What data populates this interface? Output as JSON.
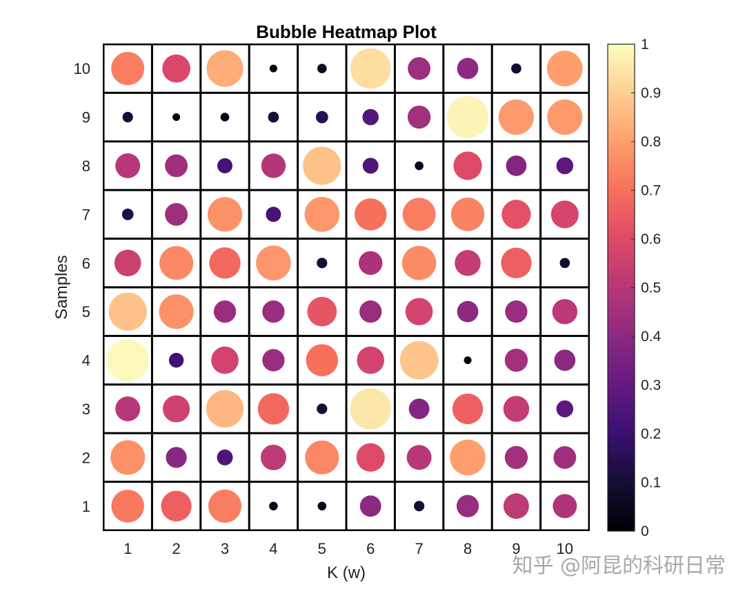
{
  "chart_data": {
    "type": "heatmap",
    "subtype": "bubble",
    "title": "Bubble Heatmap Plot",
    "xlabel": "K (w)",
    "ylabel": "Samples",
    "x": [
      "1",
      "2",
      "3",
      "4",
      "5",
      "6",
      "7",
      "8",
      "9",
      "10"
    ],
    "y": [
      "1",
      "2",
      "3",
      "4",
      "5",
      "6",
      "7",
      "8",
      "9",
      "10"
    ],
    "rows": [
      [
        0.72,
        0.66,
        0.73,
        0.05,
        0.05,
        0.4,
        0.1,
        0.43,
        0.52,
        0.48
      ],
      [
        0.77,
        0.39,
        0.25,
        0.52,
        0.75,
        0.6,
        0.5,
        0.8,
        0.45,
        0.44
      ],
      [
        0.5,
        0.56,
        0.85,
        0.68,
        0.1,
        0.95,
        0.38,
        0.66,
        0.53,
        0.28
      ],
      [
        0.99,
        0.22,
        0.57,
        0.43,
        0.7,
        0.57,
        0.88,
        0.02,
        0.45,
        0.4
      ],
      [
        0.87,
        0.77,
        0.43,
        0.43,
        0.63,
        0.43,
        0.57,
        0.4,
        0.43,
        0.51
      ],
      [
        0.55,
        0.75,
        0.68,
        0.78,
        0.1,
        0.47,
        0.76,
        0.53,
        0.66,
        0.09
      ],
      [
        0.13,
        0.44,
        0.77,
        0.23,
        0.78,
        0.7,
        0.73,
        0.74,
        0.62,
        0.58
      ],
      [
        0.5,
        0.44,
        0.23,
        0.49,
        0.87,
        0.25,
        0.05,
        0.6,
        0.38,
        0.28
      ],
      [
        0.1,
        0.02,
        0.05,
        0.11,
        0.15,
        0.26,
        0.45,
        0.98,
        0.79,
        0.79
      ],
      [
        0.73,
        0.59,
        0.83,
        0.02,
        0.07,
        0.93,
        0.44,
        0.4,
        0.09,
        0.8
      ]
    ],
    "colorbar": {
      "min": 0,
      "max": 1,
      "ticks": [
        "0",
        "0.1",
        "0.2",
        "0.3",
        "0.4",
        "0.5",
        "0.6",
        "0.7",
        "0.8",
        "0.9",
        "1"
      ],
      "colormap": "magma",
      "stops": [
        "#000004",
        "#140e36",
        "#3b0f70",
        "#641a80",
        "#8c2981",
        "#b73779",
        "#de4968",
        "#f7705c",
        "#fe9f6d",
        "#fecf92",
        "#fcfdbf"
      ]
    },
    "grid": true,
    "legend": "colorbar-right"
  },
  "watermark": "知乎 @阿昆的科研日常"
}
